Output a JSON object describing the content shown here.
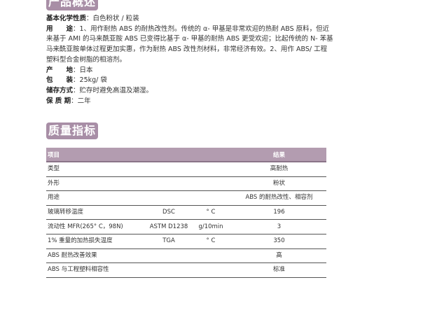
{
  "overview": {
    "title": "产品概述",
    "fields": [
      {
        "label": "基本化学性质",
        "value": "白色粉状 / 粒装"
      },
      {
        "label": "用　　途",
        "value": "1、用作耐热 ABS 的耐热改性剂。传统的 α- 甲基是非常欢迎的热耐 ABS 原料，但近来基于 AMI 的马来酰亚胺 ABS 已变得比基于 α- 甲基的耐热 ABS 更受欢迎；比起传统的 N- 苯基马来酰亚胺单体过程更加实惠，作为耐热 ABS 改性剂材料，非常经济有效。2、用作 ABS/ 工程塑料型合金树脂的相溶剂。"
      },
      {
        "label": "产　　地",
        "value": "日本"
      },
      {
        "label": "包　　装",
        "value": "25kg/ 袋"
      },
      {
        "label": "储存方式",
        "value": "贮存时避免高温及潮湿。"
      },
      {
        "label": "保 质 期",
        "value": "二年"
      }
    ]
  },
  "quality": {
    "title": "质量指标",
    "headers": [
      "项目",
      "",
      "",
      "结果"
    ],
    "rows": [
      [
        "类型",
        "",
        "",
        "高耐热"
      ],
      [
        "外形",
        "",
        "",
        "粉状"
      ],
      [
        "用途",
        "",
        "",
        "ABS 的耐热改性、相容剂"
      ],
      [
        "玻璃转移温度",
        "DSC",
        "° C",
        "196"
      ],
      [
        "流动性 MFR(265° C，98N)",
        "ASTM D1238",
        "g/10min",
        "3"
      ],
      [
        "1% 重量的加热损失温度",
        "TGA",
        "° C",
        "350"
      ],
      [
        "ABS 耐热改善效果",
        "",
        "",
        "高"
      ],
      [
        "ABS 与工程塑料相容性",
        "",
        "",
        "标准"
      ]
    ]
  },
  "colors": {
    "accent": "#a88ea6"
  }
}
